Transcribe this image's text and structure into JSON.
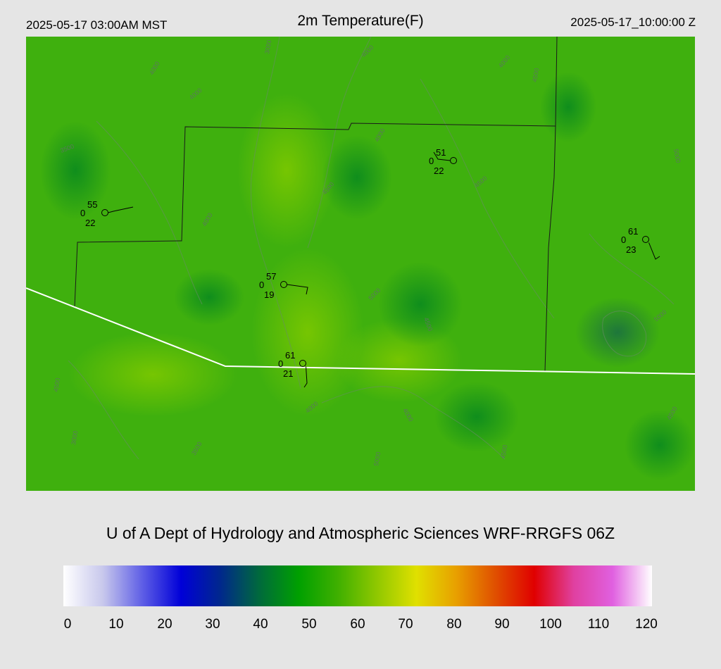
{
  "header": {
    "local_time": "2025-05-17 03:00AM MST",
    "title": "2m Temperature(F)",
    "utc_time": "2025-05-17_10:00:00 Z"
  },
  "credit": "U of A Dept of Hydrology and Atmospheric Sciences WRF-RRGFS 06Z",
  "colorbar": {
    "ticks": [
      "0",
      "10",
      "20",
      "30",
      "40",
      "50",
      "60",
      "70",
      "80",
      "90",
      "100",
      "110",
      "120"
    ],
    "stops": [
      "#ffffff",
      "#c8c8ec",
      "#6060e6",
      "#0000d8",
      "#00288c",
      "#006a3c",
      "#00a000",
      "#40b000",
      "#90c800",
      "#e0e000",
      "#e8a000",
      "#e05000",
      "#e00000",
      "#e040a0",
      "#e060e0",
      "#ffffff"
    ]
  },
  "stations": [
    {
      "temp": "55",
      "dew": "22",
      "gust": "0"
    },
    {
      "temp": "51",
      "dew": "22",
      "gust": "0"
    },
    {
      "temp": "61",
      "dew": "23",
      "gust": "0"
    },
    {
      "temp": "57",
      "dew": "19",
      "gust": "0"
    },
    {
      "temp": "61",
      "dew": "21",
      "gust": "0"
    }
  ],
  "contour_labels": [
    "4000",
    "3000",
    "4000",
    "4000",
    "4000",
    "3500",
    "4000",
    "4500",
    "4000",
    "4500",
    "4500",
    "5000",
    "4500",
    "4000",
    "3000",
    "4000",
    "5000",
    "4500",
    "5000",
    "4500",
    "3500",
    "4500",
    "5000"
  ]
}
